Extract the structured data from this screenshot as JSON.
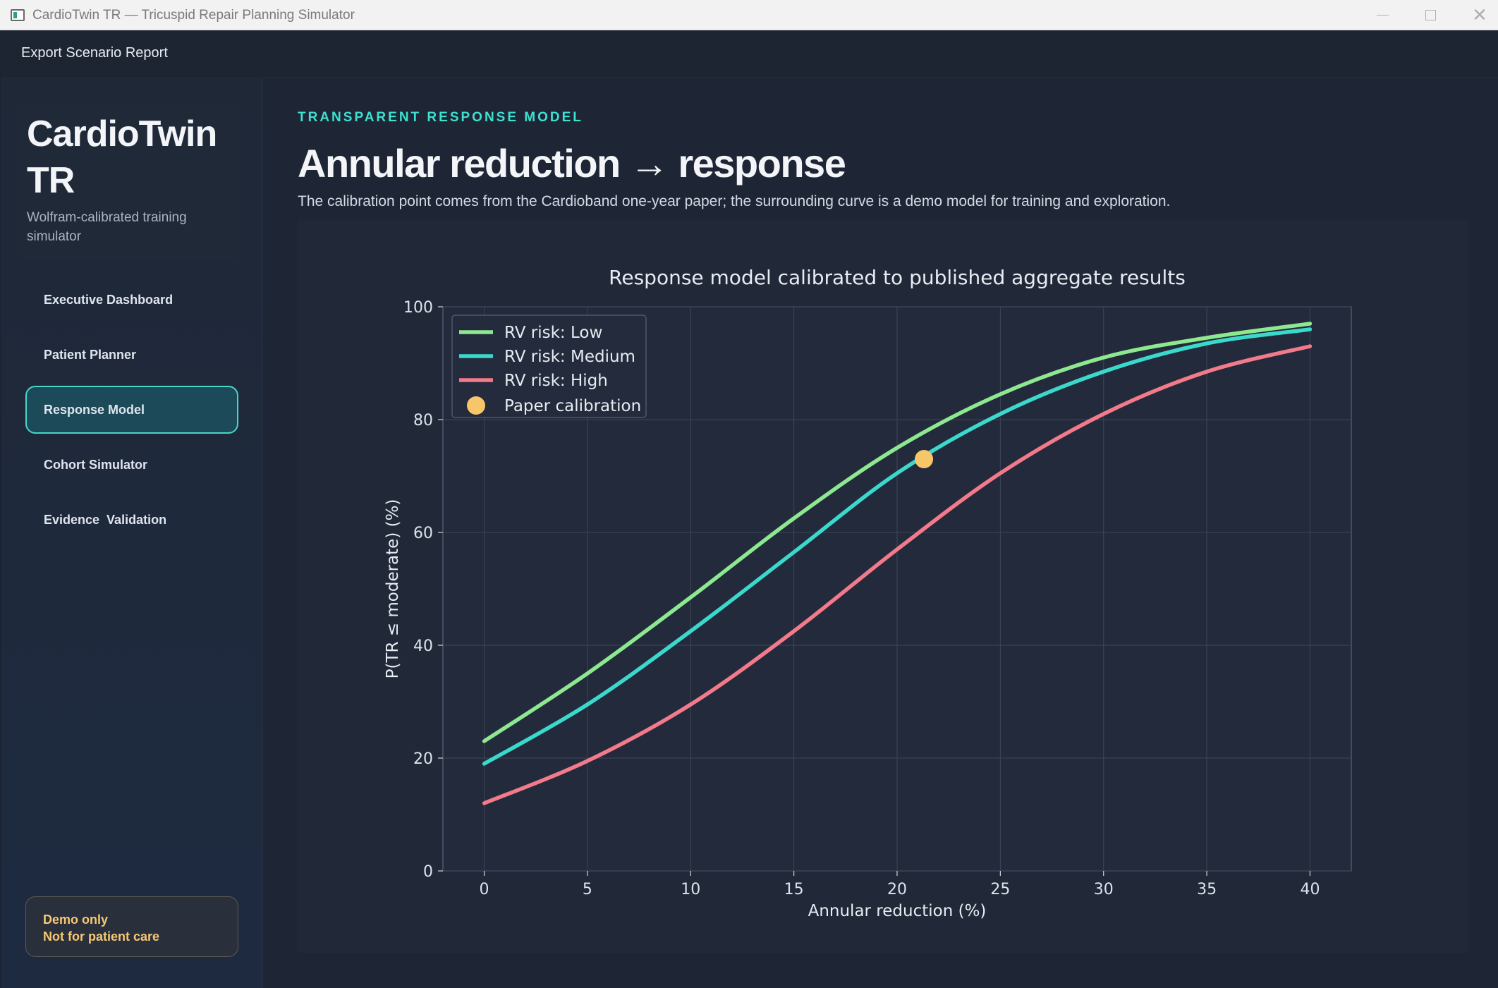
{
  "window": {
    "title": "CardioTwin TR — Tricuspid Repair Planning Simulator"
  },
  "toolbar": {
    "export_label": "Export Scenario Report"
  },
  "sidebar": {
    "brand_title": "CardioTwin TR",
    "brand_subtitle": "Wolfram-calibrated training simulator",
    "items": [
      {
        "label": "Executive Dashboard",
        "active": false
      },
      {
        "label": "Patient Planner",
        "active": false
      },
      {
        "label": "Response Model",
        "active": true
      },
      {
        "label": "Cohort Simulator",
        "active": false
      },
      {
        "label": "Evidence  Validation",
        "active": false
      }
    ],
    "badge": {
      "line1": "Demo only",
      "line2": "Not for patient care"
    }
  },
  "main": {
    "eyebrow": "TRANSPARENT RESPONSE MODEL",
    "heading": "Annular reduction → response",
    "description": "The calibration point comes from the Cardioband one-year paper; the surrounding curve is a demo model for training and exploration."
  },
  "chart_data": {
    "type": "line",
    "title": "Response model calibrated to published aggregate results",
    "xlabel": "Annular reduction (%)",
    "ylabel": "P(TR ≤ moderate) (%)",
    "xlim": [
      -2,
      42
    ],
    "ylim": [
      0,
      100
    ],
    "xticks": [
      0,
      5,
      10,
      15,
      20,
      25,
      30,
      35,
      40
    ],
    "yticks": [
      0,
      20,
      40,
      60,
      80,
      100
    ],
    "grid": true,
    "legend_position": "top-left",
    "x": [
      0,
      5,
      10,
      15,
      20,
      25,
      30,
      35,
      40
    ],
    "series": [
      {
        "name": "RV risk: Low",
        "color": "#8de88f",
        "values": [
          23,
          35,
          48.5,
          62.5,
          75,
          84.5,
          91,
          94.5,
          97
        ]
      },
      {
        "name": "RV risk: Medium",
        "color": "#3ad9cc",
        "values": [
          19,
          29.5,
          42.5,
          56.5,
          70.5,
          81,
          88.5,
          93.5,
          96
        ]
      },
      {
        "name": "RV risk: High",
        "color": "#f27a8a",
        "values": [
          12,
          19.5,
          29.5,
          42.5,
          57,
          70.5,
          81,
          88.5,
          93
        ]
      }
    ],
    "calibration_point": {
      "name": "Paper calibration",
      "x": 21.3,
      "y": 73,
      "color": "#f8c66a"
    }
  }
}
